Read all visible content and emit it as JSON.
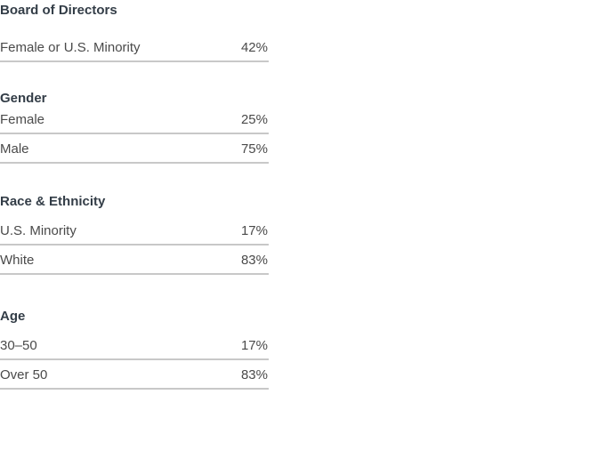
{
  "sections": [
    {
      "title": "Board of Directors",
      "rows": [
        {
          "label": "Female or U.S. Minority",
          "value": "42%"
        }
      ]
    },
    {
      "title": "Gender",
      "rows": [
        {
          "label": "Female",
          "value": "25%"
        },
        {
          "label": "Male",
          "value": "75%"
        }
      ]
    },
    {
      "title": "Race & Ethnicity",
      "rows": [
        {
          "label": "U.S. Minority",
          "value": "17%"
        },
        {
          "label": "White",
          "value": "83%"
        }
      ]
    },
    {
      "title": "Age",
      "rows": [
        {
          "label": "30–50",
          "value": "17%"
        },
        {
          "label": "Over 50",
          "value": "83%"
        }
      ]
    }
  ]
}
